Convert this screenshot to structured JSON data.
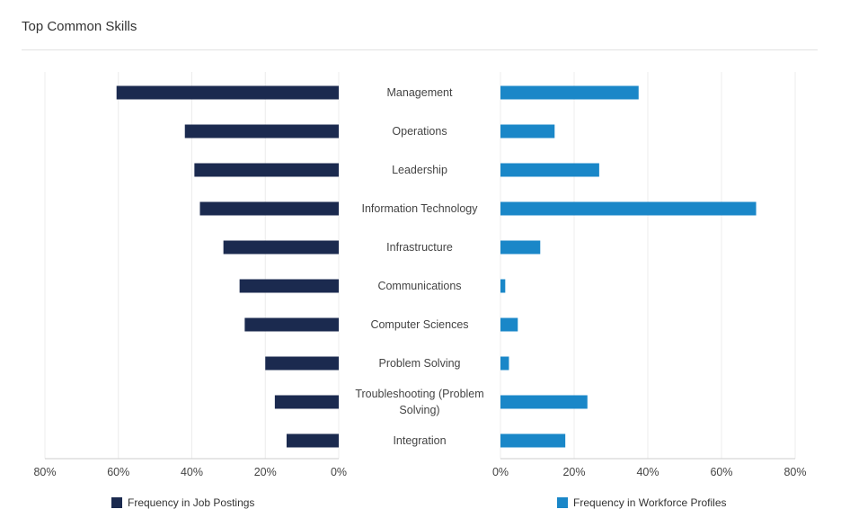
{
  "header": {
    "title": "Top Common Skills"
  },
  "chart_data": {
    "type": "bar",
    "orientation": "horizontal-butterfly",
    "categories": [
      "Management",
      "Operations",
      "Leadership",
      "Information Technology",
      "Infrastructure",
      "Communications",
      "Computer Sciences",
      "Problem Solving",
      "Troubleshooting (Problem Solving)",
      "Integration"
    ],
    "series": [
      {
        "name": "Frequency in Job Postings",
        "color": "#1b2a4f",
        "values": [
          60.5,
          41.9,
          39.3,
          37.8,
          31.4,
          27.0,
          25.6,
          20.0,
          17.4,
          14.2
        ]
      },
      {
        "name": "Frequency in Workforce Profiles",
        "color": "#1a87c8",
        "values": [
          37.5,
          14.7,
          26.8,
          69.4,
          10.8,
          1.3,
          4.7,
          2.3,
          23.6,
          17.6
        ]
      }
    ],
    "left_ticks": [
      "80%",
      "60%",
      "40%",
      "20%",
      "0%"
    ],
    "right_ticks": [
      "0%",
      "20%",
      "40%",
      "60%",
      "80%"
    ],
    "xlim": [
      0,
      80
    ],
    "grid": true,
    "legend_position": "bottom"
  },
  "legend": {
    "left_label": "Frequency in Job Postings",
    "right_label": "Frequency in Workforce Profiles"
  }
}
